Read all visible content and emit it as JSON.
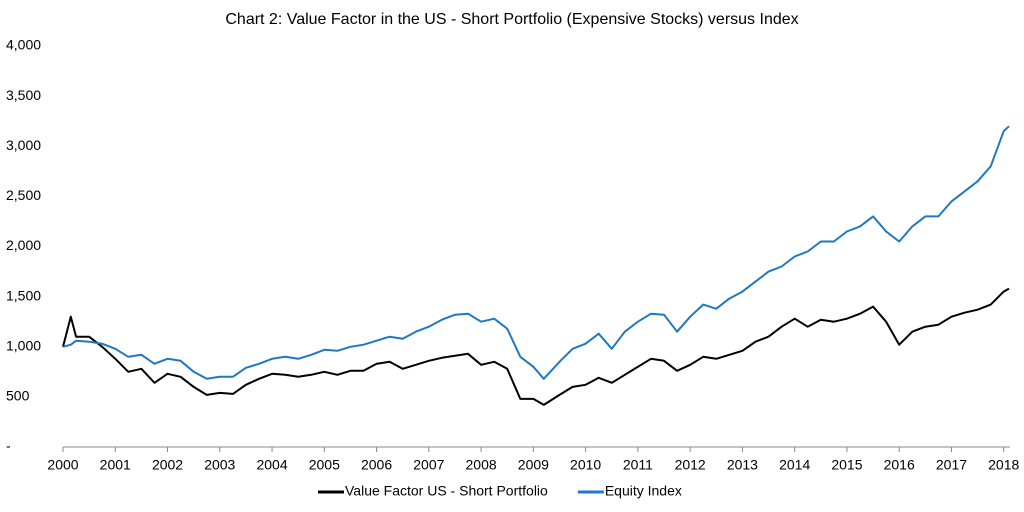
{
  "chart_data": {
    "type": "line",
    "title": "Chart 2: Value Factor in the US - Short Portfolio (Expensive Stocks) versus Index",
    "x": [
      2000,
      2000.15,
      2000.25,
      2000.5,
      2000.75,
      2001,
      2001.25,
      2001.5,
      2001.75,
      2002,
      2002.25,
      2002.5,
      2002.75,
      2003,
      2003.25,
      2003.5,
      2003.75,
      2004,
      2004.25,
      2004.5,
      2004.75,
      2005,
      2005.25,
      2005.5,
      2005.75,
      2006,
      2006.25,
      2006.5,
      2006.75,
      2007,
      2007.25,
      2007.5,
      2007.75,
      2008,
      2008.25,
      2008.5,
      2008.75,
      2009,
      2009.2,
      2009.5,
      2009.75,
      2010,
      2010.25,
      2010.5,
      2010.75,
      2011,
      2011.25,
      2011.5,
      2011.75,
      2012,
      2012.25,
      2012.5,
      2012.75,
      2013,
      2013.25,
      2013.5,
      2013.75,
      2014,
      2014.25,
      2014.5,
      2014.75,
      2015,
      2015.25,
      2015.5,
      2015.75,
      2016,
      2016.25,
      2016.5,
      2016.75,
      2017,
      2017.25,
      2017.5,
      2017.75,
      2018,
      2018.1
    ],
    "series": [
      {
        "name": "Value Factor US -  Short Portfolio",
        "color": "#000000",
        "values": [
          1000,
          1300,
          1100,
          1100,
          1000,
          880,
          750,
          780,
          640,
          730,
          700,
          600,
          520,
          540,
          530,
          620,
          680,
          730,
          720,
          700,
          720,
          750,
          720,
          760,
          760,
          830,
          850,
          780,
          820,
          860,
          890,
          910,
          930,
          820,
          850,
          780,
          480,
          480,
          420,
          520,
          600,
          620,
          690,
          640,
          720,
          800,
          880,
          860,
          760,
          820,
          900,
          880,
          920,
          960,
          1050,
          1100,
          1200,
          1280,
          1200,
          1270,
          1250,
          1280,
          1330,
          1400,
          1250,
          1020,
          1150,
          1200,
          1220,
          1300,
          1340,
          1370,
          1420,
          1550,
          1580
        ]
      },
      {
        "name": "Equity Index",
        "color": "#1f78c1",
        "values": [
          1000,
          1020,
          1060,
          1050,
          1030,
          980,
          900,
          920,
          830,
          880,
          860,
          750,
          680,
          700,
          700,
          790,
          830,
          880,
          900,
          880,
          920,
          970,
          960,
          1000,
          1020,
          1060,
          1100,
          1080,
          1150,
          1200,
          1270,
          1320,
          1330,
          1250,
          1280,
          1180,
          900,
          800,
          680,
          850,
          980,
          1030,
          1130,
          980,
          1150,
          1250,
          1330,
          1320,
          1150,
          1300,
          1420,
          1380,
          1480,
          1550,
          1650,
          1750,
          1800,
          1900,
          1950,
          2050,
          2050,
          2150,
          2200,
          2300,
          2150,
          2050,
          2200,
          2300,
          2300,
          2450,
          2550,
          2650,
          2800,
          3150,
          3200
        ]
      }
    ],
    "xlim": [
      2000,
      2018.12
    ],
    "xticks": [
      2000,
      2001,
      2002,
      2003,
      2004,
      2005,
      2006,
      2007,
      2008,
      2009,
      2010,
      2011,
      2012,
      2013,
      2014,
      2015,
      2016,
      2017,
      2018
    ],
    "ylim": [
      0,
      4000
    ],
    "yticks": [
      {
        "value": 0,
        "label": "-"
      },
      500,
      {
        "value": 1000,
        "label": "1,000"
      },
      {
        "value": 1500,
        "label": "1,500"
      },
      {
        "value": 2000,
        "label": "2,000"
      },
      {
        "value": 2500,
        "label": "2,500"
      },
      {
        "value": 3000,
        "label": "3,000"
      },
      {
        "value": 3500,
        "label": "3,500"
      },
      {
        "value": 4000,
        "label": "4,000"
      }
    ],
    "grid": false,
    "legend": "bottom"
  }
}
